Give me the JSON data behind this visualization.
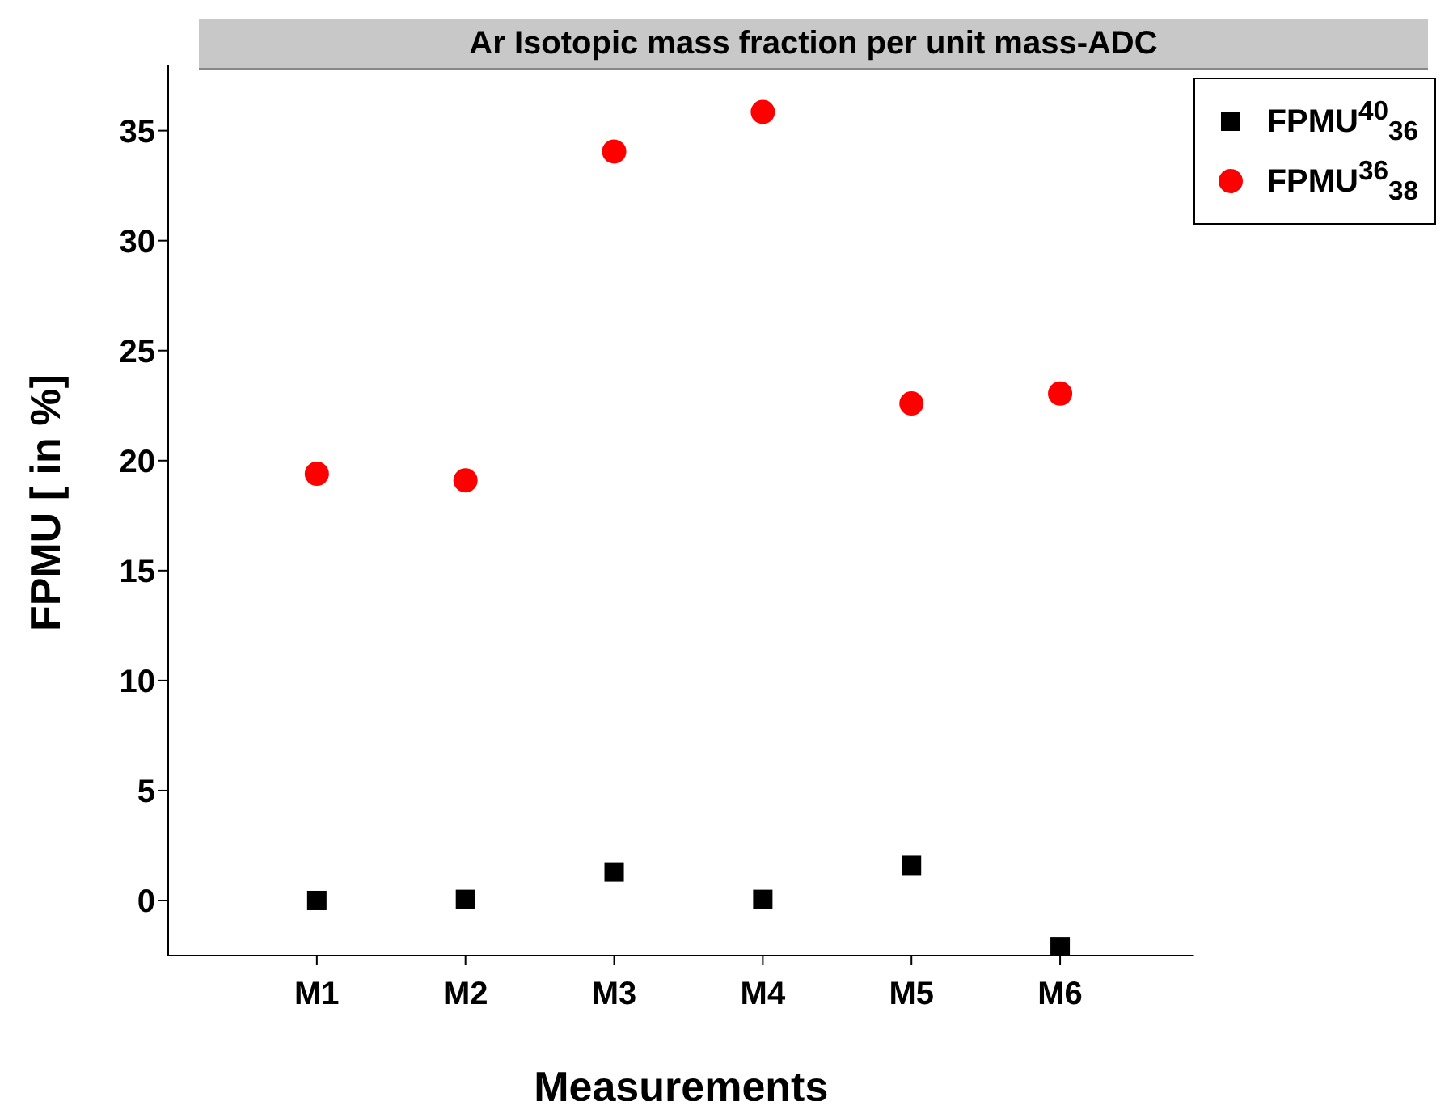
{
  "chart_data": {
    "type": "scatter",
    "title": "Ar Isotopic mass fraction per unit mass-ADC",
    "xlabel": "Measurements",
    "ylabel": "FPMU [ in %]",
    "categories": [
      "M1",
      "M2",
      "M3",
      "M4",
      "M5",
      "M6"
    ],
    "series": [
      {
        "name": "FPMU$^{40}$$_{36}$",
        "color": "#000000",
        "marker": "square",
        "values": [
          0.0,
          0.05,
          1.3,
          0.05,
          1.6,
          -2.1
        ]
      },
      {
        "name": "FPMU$^{36}$$_{38}$",
        "color": "#ff0000",
        "marker": "circle",
        "values": [
          19.4,
          19.1,
          34.05,
          35.85,
          22.6,
          23.05
        ]
      }
    ],
    "ylim": [
      -2.5,
      38
    ],
    "yticks": [
      0,
      5,
      10,
      15,
      20,
      25,
      30,
      35
    ],
    "grid": false,
    "legend": "top right"
  }
}
